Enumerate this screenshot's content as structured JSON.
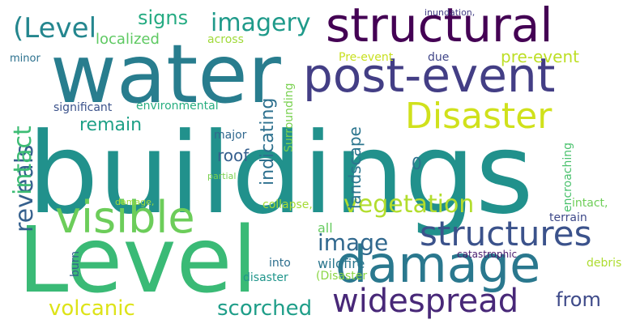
{
  "words": [
    {
      "text": "buildings",
      "color": "#21918c"
    },
    {
      "text": "water",
      "color": "#287d8e"
    },
    {
      "text": "Level",
      "color": "#3aba76"
    },
    {
      "text": "structural",
      "color": "#440154"
    },
    {
      "text": "post-event",
      "color": "#433e85"
    },
    {
      "text": "Disaster",
      "color": "#d0e11c"
    },
    {
      "text": "visible",
      "color": "#6ccd5a"
    },
    {
      "text": "damage",
      "color": "#2a788e"
    },
    {
      "text": "structures",
      "color": "#3b528b"
    },
    {
      "text": "widespread",
      "color": "#482878"
    },
    {
      "text": "(Level",
      "color": "#24868e"
    },
    {
      "text": "imagery",
      "color": "#1f9a8a"
    },
    {
      "text": "signs",
      "color": "#25ab82"
    },
    {
      "text": "remain",
      "color": "#1fa187"
    },
    {
      "text": "vegetation",
      "color": "#b2dd2d"
    },
    {
      "text": "image",
      "color": "#31688e"
    },
    {
      "text": "scorched",
      "color": "#1f9e89"
    },
    {
      "text": "volcanic",
      "color": "#dde318"
    },
    {
      "text": "from",
      "color": "#3e4a89"
    },
    {
      "text": "localized",
      "color": "#5ec962"
    },
    {
      "text": "pre-event",
      "color": "#bddf26"
    },
    {
      "text": "roof",
      "color": "#355f8d"
    },
    {
      "text": "environmental",
      "color": "#28ae80"
    },
    {
      "text": "significant",
      "color": "#3b528b"
    },
    {
      "text": "major",
      "color": "#31688e"
    },
    {
      "text": "across",
      "color": "#a0da39"
    },
    {
      "text": "minor",
      "color": "#2c718e"
    },
    {
      "text": "Pre-event",
      "color": "#c8e020"
    },
    {
      "text": "due",
      "color": "#404688"
    },
    {
      "text": "inundation,",
      "color": "#433e85"
    },
    {
      "text": "0",
      "color": "#2c718e"
    },
    {
      "text": "terrain",
      "color": "#3e4989"
    },
    {
      "text": "collapse,",
      "color": "#a5db36"
    },
    {
      "text": "all",
      "color": "#65cb5e"
    },
    {
      "text": "wildfire",
      "color": "#2a768e"
    },
    {
      "text": "debris",
      "color": "#addc30"
    },
    {
      "text": "catastrophic",
      "color": "#481c6e"
    },
    {
      "text": "into",
      "color": "#2e6f8e"
    },
    {
      "text": "disaster",
      "color": "#1f958b"
    },
    {
      "text": "(Disaster",
      "color": "#8bd646"
    },
    {
      "text": "partial",
      "color": "#7ad151"
    },
    {
      "text": "damage,",
      "color": "#9fda3a"
    },
    {
      "text": "reveals",
      "color": "#35608d"
    },
    {
      "text": "intact",
      "color": "#3dbc74"
    },
    {
      "text": "indicating",
      "color": "#2d708e"
    },
    {
      "text": "Surrounding",
      "color": "#7ad151"
    },
    {
      "text": "landscape",
      "color": "#2b758e"
    },
    {
      "text": "encroaching",
      "color": "#4ac16d"
    },
    {
      "text": "burn",
      "color": "#33638d"
    },
    {
      "text": "intact,",
      "color": "#6ece58"
    }
  ]
}
